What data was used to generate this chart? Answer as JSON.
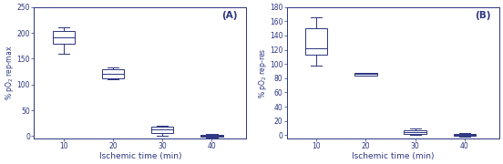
{
  "chart_A": {
    "ylabel": "% pO$_2$ rep-max",
    "ylim": [
      -5,
      250
    ],
    "yticks": [
      0,
      50,
      100,
      150,
      200,
      250
    ],
    "xlabel": "Ischemic time (min)",
    "label": "(A)",
    "boxes": [
      {
        "x": 10,
        "whislo": 160,
        "q1": 178,
        "med": 192,
        "q3": 204,
        "whishi": 210
      },
      {
        "x": 20,
        "whislo": 110,
        "q1": 112,
        "med": 120,
        "q3": 130,
        "whishi": 133
      },
      {
        "x": 30,
        "whislo": 1,
        "q1": 6,
        "med": 13,
        "q3": 18,
        "whishi": 20
      },
      {
        "x": 40,
        "whislo": -2,
        "q1": -1,
        "med": 1,
        "q3": 3,
        "whishi": 4
      }
    ]
  },
  "chart_B": {
    "ylabel": "% pO$_2$ rep-res",
    "ylim": [
      -5,
      180
    ],
    "yticks": [
      0,
      20,
      40,
      60,
      80,
      100,
      120,
      140,
      160,
      180
    ],
    "xlabel": "Ischemic time (min)",
    "label": "(B)",
    "boxes": [
      {
        "x": 10,
        "whislo": 98,
        "q1": 113,
        "med": 122,
        "q3": 150,
        "whishi": 165
      },
      {
        "x": 20,
        "whislo": 84,
        "q1": 84,
        "med": 86,
        "q3": 88,
        "whishi": 88
      },
      {
        "x": 30,
        "whislo": 0,
        "q1": 2,
        "med": 4,
        "q3": 7,
        "whishi": 9
      },
      {
        "x": 40,
        "whislo": -2,
        "q1": -1,
        "med": 1,
        "q3": 2,
        "whishi": 3
      }
    ]
  },
  "box_color": "#2b3480",
  "box_width": 4.5,
  "xticks": [
    10,
    20,
    30,
    40
  ],
  "xlim": [
    4,
    47
  ]
}
